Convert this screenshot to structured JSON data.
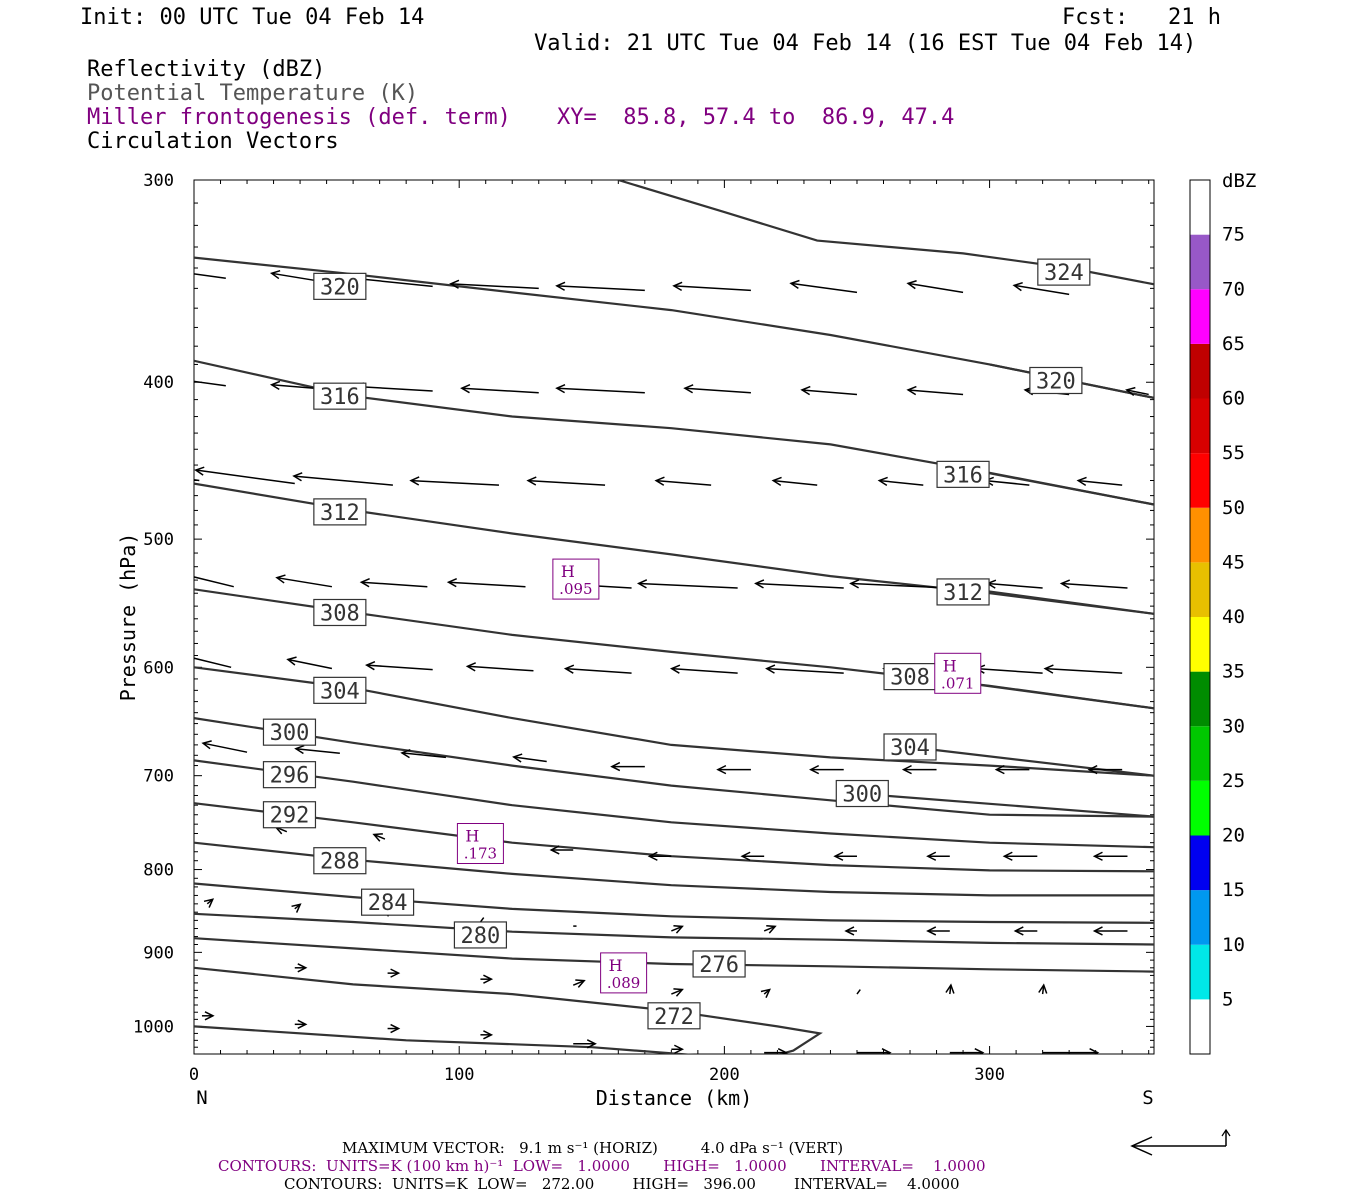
{
  "header": {
    "init": "Init: 00 UTC Tue 04 Feb 14",
    "fcst": "Fcst:   21 h",
    "valid": "Valid: 21 UTC Tue 04 Feb 14 (16 EST Tue 04 Feb 14)",
    "field1": "Reflectivity (dBZ)",
    "field2": "Potential Temperature (K)",
    "field3": "Miller frontogenesis (def. term)",
    "xy": "XY=  85.8, 57.4 to  86.9, 47.4",
    "field4": "Circulation Vectors"
  },
  "chart_data": {
    "type": "line",
    "xlabel": "Distance (km)",
    "ylabel": "Pressure (hPa)",
    "xlim": [
      0,
      362
    ],
    "ylim": [
      1040,
      300
    ],
    "y_scale": "log",
    "x_ticks": [
      0,
      100,
      200,
      300
    ],
    "y_ticks": [
      300,
      400,
      500,
      600,
      700,
      800,
      900,
      1000
    ],
    "x_end_labels": {
      "left": "N",
      "right": "S"
    },
    "isentropes": [
      {
        "theta": 324,
        "x": [
          160,
          200,
          235,
          290,
          330,
          362
        ],
        "p": [
          300,
          314,
          327,
          333,
          340,
          348
        ],
        "label_at": [
          328,
          342
        ]
      },
      {
        "theta": 320,
        "x": [
          0,
          60,
          120,
          180,
          240,
          300,
          362
        ],
        "p": [
          335,
          343,
          352,
          361,
          374,
          390,
          409
        ],
        "label_at": [
          55,
          349
        ]
      },
      {
        "theta": 320,
        "x": [
          300,
          362
        ],
        "p": [
          390,
          409
        ],
        "label_at": [
          325,
          399
        ]
      },
      {
        "theta": 316,
        "x": [
          0,
          60,
          120,
          180,
          240,
          300,
          362
        ],
        "p": [
          388,
          408,
          420,
          427,
          437,
          455,
          476
        ],
        "label_at": [
          55,
          408
        ]
      },
      {
        "theta": 316,
        "x": [
          290,
          362
        ],
        "p": [
          452,
          476
        ],
        "label_at": [
          290,
          456
        ]
      },
      {
        "theta": 312,
        "x": [
          0,
          60,
          120,
          180,
          240,
          300,
          362
        ],
        "p": [
          462,
          480,
          496,
          511,
          527,
          540,
          556
        ],
        "label_at": [
          55,
          481
        ]
      },
      {
        "theta": 312,
        "x": [
          290,
          362
        ],
        "p": [
          536,
          556
        ],
        "label_at": [
          290,
          539
        ]
      },
      {
        "theta": 308,
        "x": [
          0,
          60,
          120,
          180,
          240,
          300,
          362
        ],
        "p": [
          537,
          555,
          573,
          587,
          600,
          616,
          636
        ],
        "label_at": [
          55,
          555
        ]
      },
      {
        "theta": 308,
        "x": [
          270,
          362
        ],
        "p": [
          607,
          636
        ],
        "label_at": [
          270,
          608
        ]
      },
      {
        "theta": 304,
        "x": [
          0,
          60,
          120,
          180,
          240,
          300,
          362
        ],
        "p": [
          600,
          618,
          645,
          670,
          682,
          690,
          700
        ],
        "label_at": [
          55,
          620
        ]
      },
      {
        "theta": 304,
        "x": [
          270,
          362
        ],
        "p": [
          672,
          700
        ],
        "label_at": [
          270,
          672
        ]
      },
      {
        "theta": 300,
        "x": [
          0,
          60,
          120,
          180,
          240,
          300,
          362
        ],
        "p": [
          645,
          668,
          690,
          710,
          725,
          740,
          742
        ],
        "label_at": [
          36,
          658
        ]
      },
      {
        "theta": 300,
        "x": [
          250,
          362
        ],
        "p": [
          718,
          742
        ],
        "label_at": [
          252,
          718
        ]
      },
      {
        "theta": 296,
        "x": [
          0,
          60,
          120,
          180,
          240,
          300,
          362
        ],
        "p": [
          685,
          706,
          730,
          748,
          760,
          770,
          775
        ],
        "label_at": [
          36,
          699
        ]
      },
      {
        "theta": 292,
        "x": [
          0,
          60,
          120,
          180,
          240,
          300,
          362
        ],
        "p": [
          728,
          748,
          770,
          785,
          795,
          801,
          802
        ],
        "label_at": [
          36,
          740
        ]
      },
      {
        "theta": 288,
        "x": [
          0,
          60,
          120,
          180,
          240,
          300,
          362
        ],
        "p": [
          770,
          789,
          805,
          818,
          826,
          830,
          830
        ],
        "label_at": [
          55,
          790
        ]
      },
      {
        "theta": 284,
        "x": [
          0,
          60,
          120,
          180,
          240,
          300,
          362
        ],
        "p": [
          816,
          832,
          846,
          855,
          860,
          862,
          863
        ],
        "label_at": [
          73,
          838
        ]
      },
      {
        "theta": 280,
        "x": [
          0,
          60,
          120,
          180,
          240,
          300,
          362
        ],
        "p": [
          852,
          862,
          874,
          881,
          884,
          888,
          890
        ],
        "label_at": [
          108,
          878
        ]
      },
      {
        "theta": 276,
        "x": [
          0,
          60,
          120,
          180,
          240,
          300,
          362
        ],
        "p": [
          882,
          895,
          908,
          915,
          918,
          922,
          925
        ],
        "label_at": [
          198,
          915
        ]
      },
      {
        "theta": 272,
        "x": [
          0,
          60,
          120,
          180,
          220,
          236,
          226,
          215
        ],
        "p": [
          920,
          942,
          955,
          978,
          1000,
          1010,
          1035,
          1047
        ],
        "label_at": [
          181,
          985
        ]
      },
      {
        "theta": 272,
        "x": [
          0,
          80,
          150,
          200,
          215,
          362
        ],
        "p": [
          1000,
          1020,
          1030,
          1045,
          1047,
          1047
        ],
        "label_at": null
      }
    ],
    "frontogenesis_maxima": [
      {
        "label": "H",
        "value": ".095",
        "x": 144,
        "p": 530
      },
      {
        "label": "H",
        "value": ".071",
        "x": 288,
        "p": 606
      },
      {
        "label": "H",
        "value": ".173",
        "x": 108,
        "p": 772
      },
      {
        "label": "H",
        "value": ".089",
        "x": 162,
        "p": 928
      }
    ],
    "colorbar": {
      "title": "dBZ",
      "levels": [
        5,
        10,
        15,
        20,
        25,
        30,
        35,
        40,
        45,
        50,
        55,
        60,
        65,
        70,
        75
      ],
      "colors": [
        "#ffffff",
        "#00e8e8",
        "#0098f0",
        "#0000f0",
        "#00ff00",
        "#00c800",
        "#008c00",
        "#ffff00",
        "#e8c000",
        "#ff9000",
        "#ff0000",
        "#d80000",
        "#c00000",
        "#ff00ff",
        "#9858c8",
        "#ffffff"
      ]
    },
    "vectors": [
      {
        "x": 12,
        "p": 345,
        "u": -6,
        "w": 0.2
      },
      {
        "x": 50,
        "p": 347,
        "u": -5,
        "w": 0.2
      },
      {
        "x": 90,
        "p": 349,
        "u": -8,
        "w": 0.2
      },
      {
        "x": 130,
        "p": 350,
        "u": -8,
        "w": 0.1
      },
      {
        "x": 170,
        "p": 351,
        "u": -8,
        "w": 0.1
      },
      {
        "x": 210,
        "p": 351,
        "u": -7,
        "w": 0.1
      },
      {
        "x": 250,
        "p": 352,
        "u": -6,
        "w": 0.2
      },
      {
        "x": 290,
        "p": 352,
        "u": -5,
        "w": 0.2
      },
      {
        "x": 330,
        "p": 353,
        "u": -5,
        "w": 0.2
      },
      {
        "x": 12,
        "p": 402,
        "u": -6,
        "w": 0.2
      },
      {
        "x": 50,
        "p": 404,
        "u": -5,
        "w": 0.1
      },
      {
        "x": 90,
        "p": 405,
        "u": -7,
        "w": 0.1
      },
      {
        "x": 130,
        "p": 406,
        "u": -7,
        "w": 0.1
      },
      {
        "x": 170,
        "p": 406,
        "u": -8,
        "w": 0.1
      },
      {
        "x": 210,
        "p": 406,
        "u": -6,
        "w": 0.1
      },
      {
        "x": 250,
        "p": 407,
        "u": -5,
        "w": 0.1
      },
      {
        "x": 290,
        "p": 407,
        "u": -5,
        "w": 0.1
      },
      {
        "x": 330,
        "p": 407,
        "u": -4,
        "w": 0.1
      },
      {
        "x": 360,
        "p": 407,
        "u": -2,
        "w": 0.1
      },
      {
        "x": 2,
        "p": 460,
        "u": -9,
        "w": 0.3
      },
      {
        "x": 38,
        "p": 462,
        "u": -9,
        "w": 0.3
      },
      {
        "x": 75,
        "p": 463,
        "u": -9,
        "w": 0.2
      },
      {
        "x": 115,
        "p": 463,
        "u": -8,
        "w": 0.1
      },
      {
        "x": 155,
        "p": 463,
        "u": -7,
        "w": 0.1
      },
      {
        "x": 195,
        "p": 463,
        "u": -5,
        "w": 0.1
      },
      {
        "x": 235,
        "p": 463,
        "u": -4,
        "w": 0.1
      },
      {
        "x": 275,
        "p": 463,
        "u": -4,
        "w": 0.1
      },
      {
        "x": 315,
        "p": 463,
        "u": -4,
        "w": 0.1
      },
      {
        "x": 350,
        "p": 463,
        "u": -4,
        "w": 0.1
      },
      {
        "x": 15,
        "p": 535,
        "u": -5,
        "w": 0.3
      },
      {
        "x": 52,
        "p": 535,
        "u": -5,
        "w": 0.2
      },
      {
        "x": 88,
        "p": 535,
        "u": -6,
        "w": 0.1
      },
      {
        "x": 125,
        "p": 535,
        "u": -7,
        "w": 0.1
      },
      {
        "x": 165,
        "p": 536,
        "u": -7,
        "w": 0.1
      },
      {
        "x": 205,
        "p": 536,
        "u": -9,
        "w": 0.1
      },
      {
        "x": 245,
        "p": 536,
        "u": -8,
        "w": 0.1
      },
      {
        "x": 285,
        "p": 536,
        "u": -9,
        "w": 0.1
      },
      {
        "x": 320,
        "p": 536,
        "u": -5,
        "w": 0.1
      },
      {
        "x": 352,
        "p": 536,
        "u": -6,
        "w": 0.1
      },
      {
        "x": 14,
        "p": 600,
        "u": -5,
        "w": 0.3
      },
      {
        "x": 52,
        "p": 601,
        "u": -4,
        "w": 0.2
      },
      {
        "x": 90,
        "p": 602,
        "u": -6,
        "w": 0.1
      },
      {
        "x": 128,
        "p": 603,
        "u": -6,
        "w": 0.1
      },
      {
        "x": 165,
        "p": 605,
        "u": -6,
        "w": 0.1
      },
      {
        "x": 205,
        "p": 605,
        "u": -6,
        "w": 0.1
      },
      {
        "x": 245,
        "p": 605,
        "u": -7,
        "w": 0.1
      },
      {
        "x": 285,
        "p": 605,
        "u": -6,
        "w": 0.1
      },
      {
        "x": 320,
        "p": 605,
        "u": -6,
        "w": 0.1
      },
      {
        "x": 350,
        "p": 605,
        "u": -7,
        "w": 0.1
      },
      {
        "x": 20,
        "p": 677,
        "u": -4,
        "w": 0.2
      },
      {
        "x": 55,
        "p": 678,
        "u": -4,
        "w": 0.1
      },
      {
        "x": 95,
        "p": 682,
        "u": -4,
        "w": 0.1
      },
      {
        "x": 133,
        "p": 686,
        "u": -3,
        "w": 0.1
      },
      {
        "x": 170,
        "p": 691,
        "u": -3,
        "w": 0.0
      },
      {
        "x": 210,
        "p": 694,
        "u": -3,
        "w": 0.0
      },
      {
        "x": 245,
        "p": 694,
        "u": -3,
        "w": 0.0
      },
      {
        "x": 280,
        "p": 694,
        "u": -3,
        "w": 0.0
      },
      {
        "x": 315,
        "p": 694,
        "u": -3,
        "w": 0.0
      },
      {
        "x": 350,
        "p": 694,
        "u": -3,
        "w": 0.0
      },
      {
        "x": 35,
        "p": 758,
        "u": -1,
        "w": 0.1
      },
      {
        "x": 72,
        "p": 766,
        "u": -1,
        "w": 0.1
      },
      {
        "x": 108,
        "p": 772,
        "u": -1,
        "w": 0.1
      },
      {
        "x": 143,
        "p": 778,
        "u": -2,
        "w": 0.0
      },
      {
        "x": 180,
        "p": 785,
        "u": -2,
        "w": 0.0
      },
      {
        "x": 215,
        "p": 785,
        "u": -2,
        "w": 0.0
      },
      {
        "x": 250,
        "p": 785,
        "u": -2,
        "w": 0.0
      },
      {
        "x": 285,
        "p": 785,
        "u": -2,
        "w": 0.0
      },
      {
        "x": 318,
        "p": 785,
        "u": -3,
        "w": 0.0
      },
      {
        "x": 352,
        "p": 785,
        "u": -3,
        "w": 0.0
      },
      {
        "x": 5,
        "p": 840,
        "u": 0.5,
        "w": 0.1
      },
      {
        "x": 38,
        "p": 846,
        "u": 0.5,
        "w": 0.1
      },
      {
        "x": 73,
        "p": 855,
        "u": 0.3,
        "w": 0.1
      },
      {
        "x": 108,
        "p": 862,
        "u": 0.3,
        "w": 0.1
      },
      {
        "x": 143,
        "p": 867,
        "u": 0.3,
        "w": 0.0
      },
      {
        "x": 180,
        "p": 873,
        "u": 1,
        "w": 0.1
      },
      {
        "x": 215,
        "p": 873,
        "u": 1,
        "w": 0.1
      },
      {
        "x": 250,
        "p": 873,
        "u": -1,
        "w": 0.0
      },
      {
        "x": 285,
        "p": 873,
        "u": -2,
        "w": 0.0
      },
      {
        "x": 318,
        "p": 873,
        "u": -2,
        "w": 0.0
      },
      {
        "x": 352,
        "p": 873,
        "u": -3,
        "w": 0.0
      },
      {
        "x": 38,
        "p": 920,
        "u": 1,
        "w": 0.0
      },
      {
        "x": 73,
        "p": 927,
        "u": 1,
        "w": 0.0
      },
      {
        "x": 108,
        "p": 935,
        "u": 1,
        "w": 0.0
      },
      {
        "x": 143,
        "p": 943,
        "u": 1,
        "w": 0.1
      },
      {
        "x": 180,
        "p": 955,
        "u": 1,
        "w": 0.1
      },
      {
        "x": 215,
        "p": 955,
        "u": 0.5,
        "w": 0.1
      },
      {
        "x": 250,
        "p": 955,
        "u": 0.3,
        "w": 0.1
      },
      {
        "x": 285,
        "p": 955,
        "u": 0.1,
        "w": 0.2
      },
      {
        "x": 320,
        "p": 955,
        "u": 0.1,
        "w": 0.2
      },
      {
        "x": 3,
        "p": 985,
        "u": 1,
        "w": 0.0
      },
      {
        "x": 38,
        "p": 997,
        "u": 1,
        "w": 0.0
      },
      {
        "x": 73,
        "p": 1003,
        "u": 1,
        "w": 0.0
      },
      {
        "x": 108,
        "p": 1012,
        "u": 1,
        "w": 0.0
      },
      {
        "x": 143,
        "p": 1025,
        "u": 2,
        "w": 0.0
      },
      {
        "x": 180,
        "p": 1033,
        "u": 1,
        "w": 0.0
      },
      {
        "x": 215,
        "p": 1038,
        "u": 2,
        "w": 0.0
      },
      {
        "x": 250,
        "p": 1038,
        "u": 3,
        "w": 0.0
      },
      {
        "x": 285,
        "p": 1038,
        "u": 3,
        "w": 0.0
      },
      {
        "x": 320,
        "p": 1038,
        "u": 5,
        "w": 0.0
      }
    ]
  },
  "footer": {
    "line1": "MAXIMUM VECTOR:   9.1 m s⁻¹ (HORIZ)         4.0 dPa s⁻¹ (VERT)",
    "line2": "CONTOURS:  UNITS=K (100 km h)⁻¹  LOW=   1.0000       HIGH=   1.0000       INTERVAL=    1.0000",
    "line3": "CONTOURS:  UNITS=K  LOW=   272.00        HIGH=   396.00        INTERVAL=    4.0000"
  }
}
